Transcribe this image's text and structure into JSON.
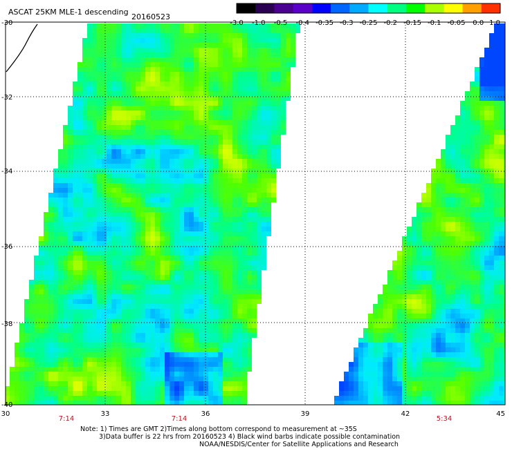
{
  "header": {
    "title": "ASCAT 25KM MLE-1 descending",
    "date": "20160523"
  },
  "colorbar": {
    "ticks": [
      "-3.0",
      "-1.0",
      "-0.5",
      "-0.4",
      "-0.35",
      "-0.3",
      "-0.25",
      "-0.2",
      "-0.15",
      "-0.1",
      "-0.05",
      "0.0",
      "1.0"
    ],
    "colors": [
      "#000000",
      "#2a0050",
      "#4a0090",
      "#5a00c8",
      "#0000ff",
      "#0066ff",
      "#00aaff",
      "#00ffff",
      "#00ff80",
      "#00ff00",
      "#aaff00",
      "#ffff00",
      "#ffa000",
      "#ff3000"
    ]
  },
  "axes": {
    "x_ticks": [
      "30",
      "33",
      "36",
      "39",
      "42",
      "45"
    ],
    "y_ticks": [
      "-30",
      "-32",
      "-34",
      "-36",
      "-38",
      "-40"
    ],
    "x_range": [
      30,
      45
    ],
    "y_range": [
      -40,
      -30
    ]
  },
  "swath_times": [
    "7:14",
    "7:14",
    "5:34"
  ],
  "notes": {
    "line1": "Note: 1) Times are GMT 2)Times along bottom correspond to measurement at ~35S",
    "line2": "3)Data buffer is 22 hrs from 20160523 4) Black wind barbs indicate possible contamination",
    "line3": "NOAA/NESDIS/Center for Satellite Applications and Research"
  }
}
